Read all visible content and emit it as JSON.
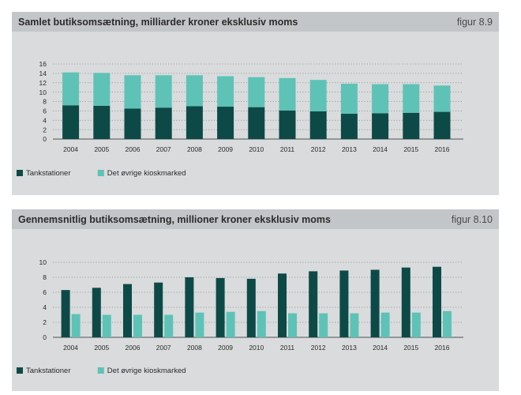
{
  "colors": {
    "tankstationer": "#0d4a47",
    "oevrige": "#5ec2b7",
    "panel_bg": "#d9dbdc",
    "header_bg": "#c3c6c8",
    "grid": "#8a8f92",
    "text": "#2b2b2b"
  },
  "chart_data": [
    {
      "type": "bar",
      "stacked": true,
      "title": "Samlet butiksomsætning, milliarder kroner eksklusiv moms",
      "figure_label": "figur 8.9",
      "categories": [
        "2004",
        "2005",
        "2006",
        "2007",
        "2008",
        "2009",
        "2010",
        "2011",
        "2012",
        "2013",
        "2014",
        "2015",
        "2016"
      ],
      "series": [
        {
          "name": "Tankstationer",
          "values": [
            7.2,
            7.1,
            6.5,
            6.7,
            7.0,
            6.9,
            6.8,
            6.1,
            5.9,
            5.4,
            5.5,
            5.6,
            5.8
          ]
        },
        {
          "name": "Det øvrige kioskmarked",
          "values": [
            7.0,
            7.0,
            7.1,
            6.9,
            6.6,
            6.5,
            6.4,
            6.9,
            6.7,
            6.4,
            6.2,
            6.1,
            5.6
          ]
        }
      ],
      "yticks": [
        0,
        2,
        4,
        6,
        8,
        10,
        12,
        14,
        16
      ],
      "ylim": [
        0,
        16
      ],
      "grid": true,
      "legend_position": "bottom-left"
    },
    {
      "type": "bar",
      "stacked": false,
      "title": "Gennemsnitlig butiksomsætning, millioner kroner eksklusiv moms",
      "figure_label": "figur 8.10",
      "categories": [
        "2004",
        "2005",
        "2006",
        "2007",
        "2008",
        "2009",
        "2010",
        "2011",
        "2012",
        "2013",
        "2014",
        "2015",
        "2016"
      ],
      "series": [
        {
          "name": "Tankstationer",
          "values": [
            6.3,
            6.6,
            7.1,
            7.3,
            8.0,
            7.9,
            7.8,
            8.5,
            8.8,
            8.9,
            9.0,
            9.3,
            9.4
          ]
        },
        {
          "name": "Det øvrige kioskmarked",
          "values": [
            3.1,
            3.0,
            3.0,
            3.0,
            3.3,
            3.4,
            3.5,
            3.2,
            3.2,
            3.2,
            3.3,
            3.3,
            3.5
          ]
        }
      ],
      "yticks": [
        0,
        2,
        4,
        6,
        8,
        10
      ],
      "ylim": [
        0,
        10
      ],
      "grid": true,
      "legend_position": "bottom-left"
    }
  ]
}
